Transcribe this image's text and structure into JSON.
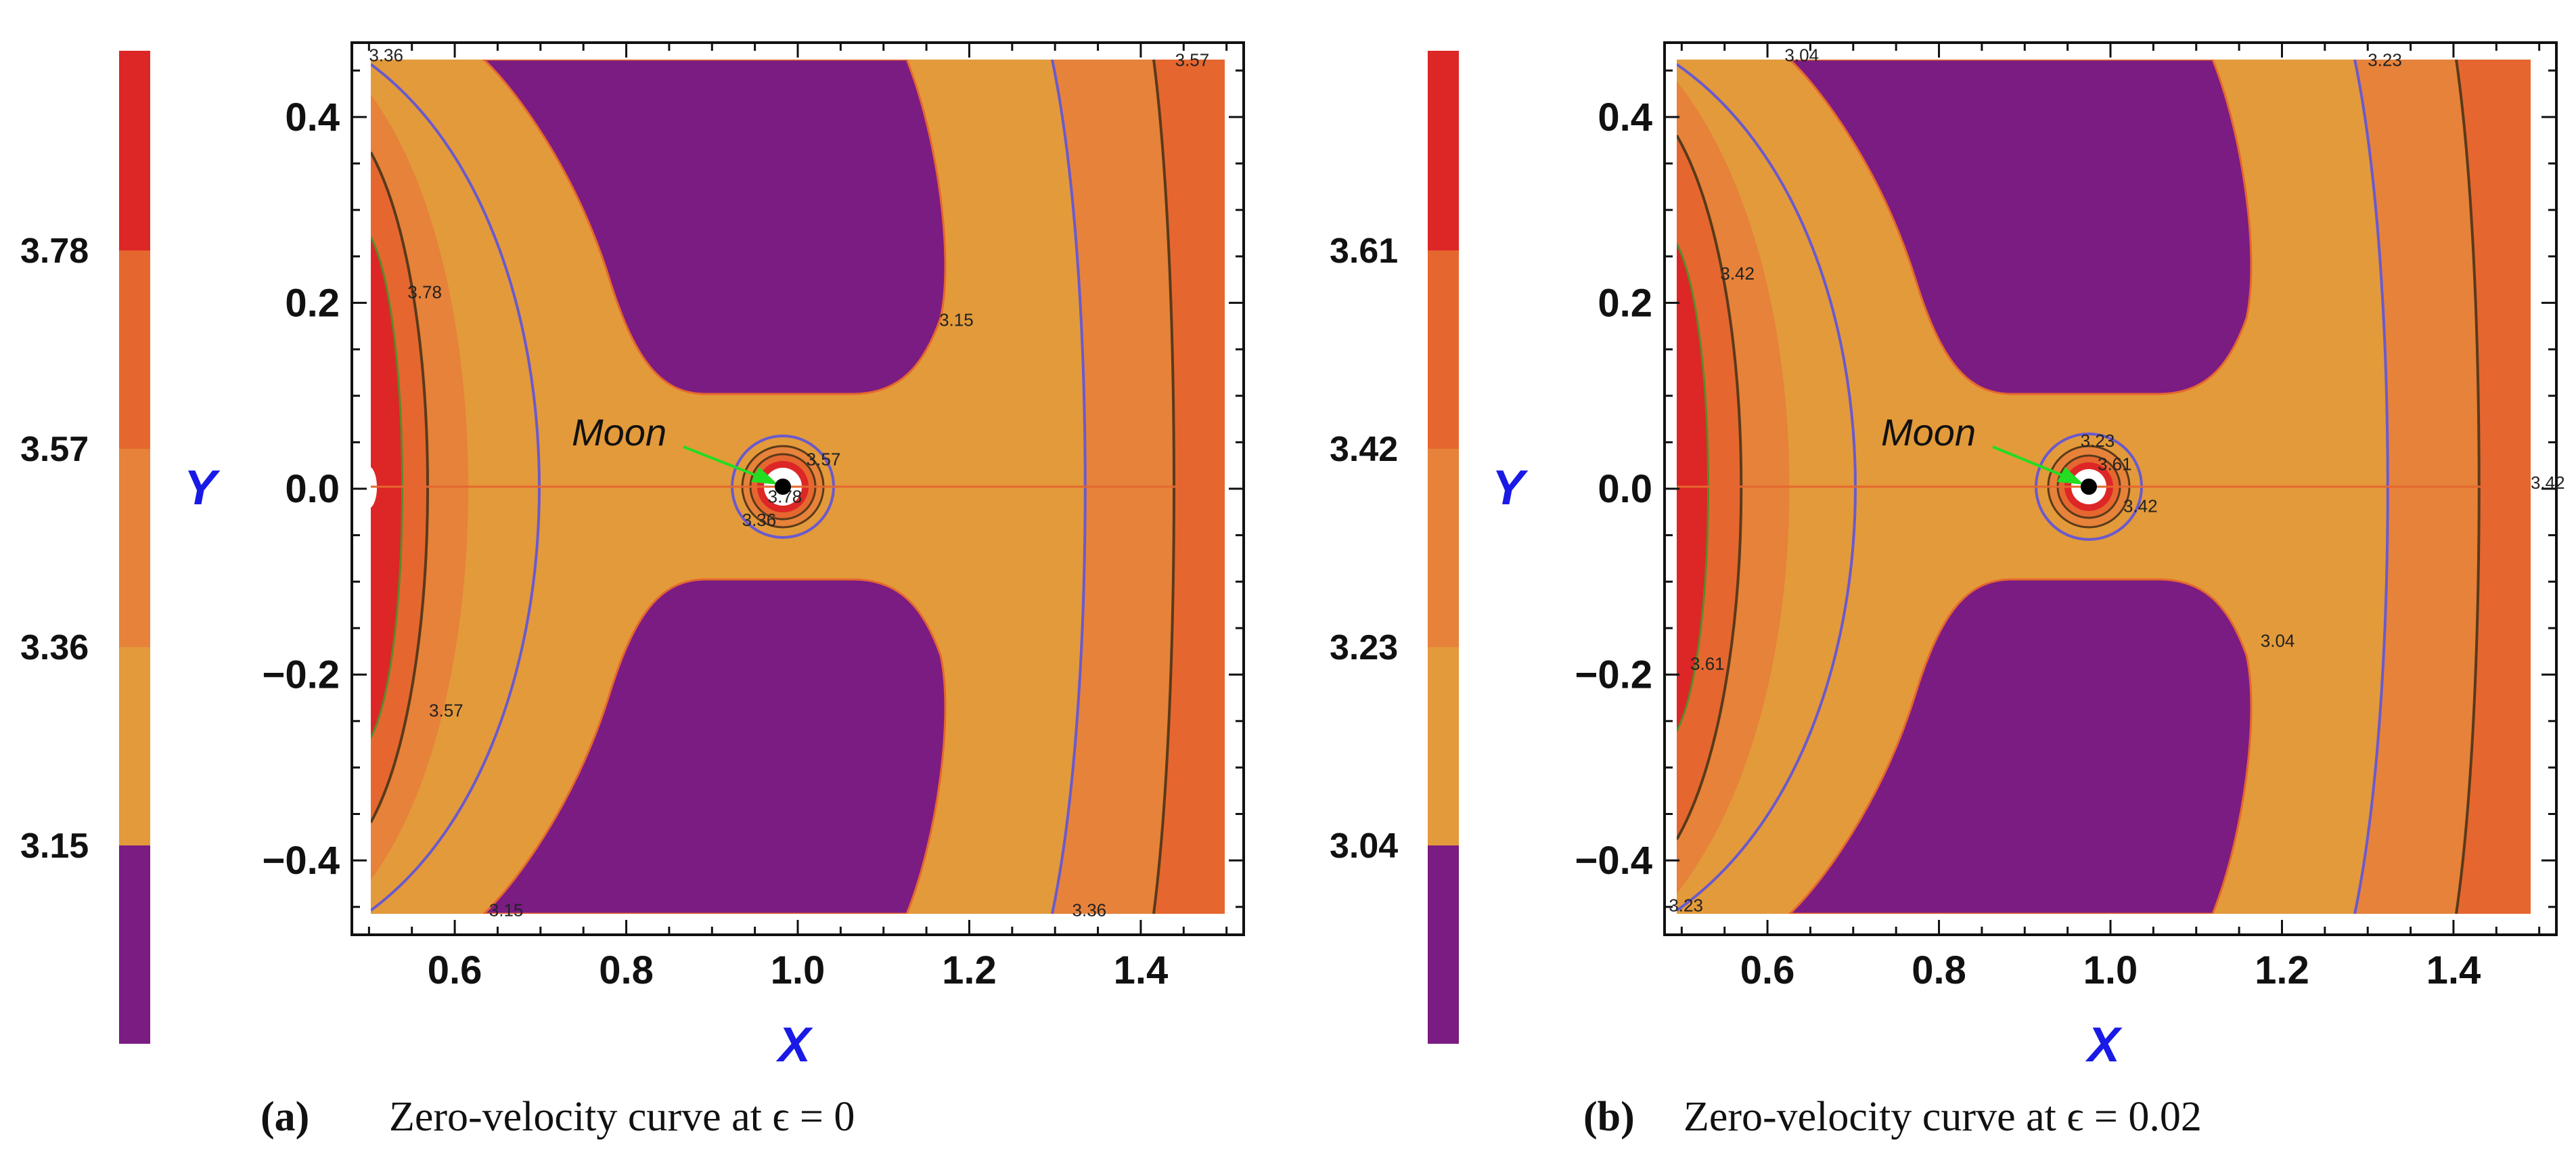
{
  "chart_data": [
    {
      "type": "contour",
      "id": "a",
      "caption_letter": "(a)",
      "caption_text": "Zero-velocity curve at ϵ = 0",
      "xlabel": "X",
      "ylabel": "Y",
      "xlim": [
        0.48,
        1.52
      ],
      "ylim": [
        -0.48,
        0.48
      ],
      "xticks": [
        "0.6",
        "0.8",
        "1.0",
        "1.2",
        "1.4"
      ],
      "xtick_values": [
        0.6,
        0.8,
        1.0,
        1.2,
        1.4
      ],
      "yticks": [
        "0.4",
        "0.2",
        "0.0",
        "−0.2",
        "−0.4"
      ],
      "ytick_values": [
        0.4,
        0.2,
        0.0,
        -0.2,
        -0.4
      ],
      "colorbar": {
        "ticks": [
          "3.78",
          "3.57",
          "3.36",
          "3.15"
        ],
        "tick_values": [
          3.78,
          3.57,
          3.36,
          3.15
        ],
        "range": [
          2.94,
          3.99
        ],
        "colors": [
          "#7a1c82",
          "#e39a3a",
          "#e6823a",
          "#e5672f",
          "#dd2626"
        ]
      },
      "contour_labels": [
        {
          "text": "3.36",
          "x": 0.5,
          "y": 0.46
        },
        {
          "text": "3.57",
          "x": 1.44,
          "y": 0.455
        },
        {
          "text": "3.78",
          "x": 0.545,
          "y": 0.205
        },
        {
          "text": "3.15",
          "x": 1.165,
          "y": 0.175
        },
        {
          "text": "3.57",
          "x": 1.01,
          "y": 0.025
        },
        {
          "text": "3.78",
          "x": 0.965,
          "y": -0.015
        },
        {
          "text": "3.36",
          "x": 0.935,
          "y": -0.04
        },
        {
          "text": "3.57",
          "x": 0.57,
          "y": -0.245
        },
        {
          "text": "3.15",
          "x": 0.64,
          "y": -0.46
        },
        {
          "text": "3.36",
          "x": 1.32,
          "y": -0.46
        }
      ],
      "moon": {
        "label": "Moon",
        "x": 0.988,
        "y": 0.0
      }
    },
    {
      "type": "contour",
      "id": "b",
      "caption_letter": "(b)",
      "caption_text": "Zero-velocity curve at ϵ = 0.02",
      "xlabel": "X",
      "ylabel": "Y",
      "xlim": [
        0.48,
        1.52
      ],
      "ylim": [
        -0.48,
        0.48
      ],
      "xticks": [
        "0.6",
        "0.8",
        "1.0",
        "1.2",
        "1.4"
      ],
      "xtick_values": [
        0.6,
        0.8,
        1.0,
        1.2,
        1.4
      ],
      "yticks": [
        "0.4",
        "0.2",
        "0.0",
        "−0.2",
        "−0.4"
      ],
      "ytick_values": [
        0.4,
        0.2,
        0.0,
        -0.2,
        -0.4
      ],
      "colorbar": {
        "ticks": [
          "3.61",
          "3.42",
          "3.23",
          "3.04"
        ],
        "tick_values": [
          3.61,
          3.42,
          3.23,
          3.04
        ],
        "range": [
          2.85,
          3.8
        ],
        "colors": [
          "#7a1c82",
          "#e39a3a",
          "#e6823a",
          "#e5672f",
          "#dd2626"
        ]
      },
      "contour_labels": [
        {
          "text": "3.04",
          "x": 0.62,
          "y": 0.46
        },
        {
          "text": "3.23",
          "x": 1.3,
          "y": 0.455
        },
        {
          "text": "3.42",
          "x": 0.545,
          "y": 0.225
        },
        {
          "text": "3.23",
          "x": 0.965,
          "y": 0.045
        },
        {
          "text": "3.61",
          "x": 0.985,
          "y": 0.02
        },
        {
          "text": "3.42",
          "x": 1.015,
          "y": -0.025
        },
        {
          "text": "3.42",
          "x": 1.49,
          "y": 0.0
        },
        {
          "text": "3.61",
          "x": 0.51,
          "y": -0.195
        },
        {
          "text": "3.04",
          "x": 1.175,
          "y": -0.17
        },
        {
          "text": "3.23",
          "x": 0.485,
          "y": -0.455
        }
      ],
      "moon": {
        "label": "Moon",
        "x": 0.988,
        "y": 0.0
      }
    }
  ]
}
